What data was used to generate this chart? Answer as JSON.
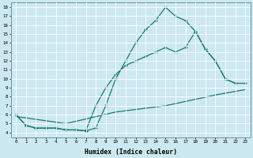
{
  "line_color": "#1a7a6e",
  "bg_color": "#cce8f0",
  "grid_color": "#ffffff",
  "xlabel": "Humidex (Indice chaleur)",
  "xlim": [
    -0.5,
    23.5
  ],
  "ylim": [
    3.5,
    18.5
  ],
  "yticks": [
    4,
    5,
    6,
    7,
    8,
    9,
    10,
    11,
    12,
    13,
    14,
    15,
    16,
    17,
    18
  ],
  "line1_x": [
    0,
    1,
    2,
    3,
    4,
    5,
    6,
    7,
    8,
    9,
    10,
    11,
    12,
    13,
    14,
    15,
    16,
    17,
    18,
    19,
    20,
    21,
    22
  ],
  "line1_y": [
    6.0,
    4.8,
    4.5,
    4.5,
    4.5,
    4.3,
    4.3,
    4.2,
    4.5,
    7.0,
    10.0,
    12.0,
    14.0,
    15.5,
    16.5,
    18.0,
    17.0,
    16.5,
    15.3,
    13.3,
    12.0,
    10.0,
    9.5
  ],
  "line2_x": [
    0,
    1,
    2,
    3,
    4,
    5,
    6,
    7,
    8,
    9,
    10,
    11,
    12,
    13,
    14,
    15,
    16,
    17,
    18,
    19,
    20,
    21,
    22,
    23
  ],
  "line2_y": [
    6.0,
    4.8,
    4.5,
    4.5,
    4.5,
    4.3,
    4.3,
    4.2,
    7.0,
    9.0,
    10.5,
    11.5,
    12.0,
    12.5,
    13.0,
    13.5,
    13.0,
    13.5,
    15.3,
    13.3,
    12.0,
    10.0,
    9.5,
    9.5
  ],
  "line3_x": [
    0,
    5,
    10,
    15,
    20,
    23
  ],
  "line3_y": [
    5.8,
    5.0,
    6.3,
    7.0,
    8.2,
    8.8
  ]
}
